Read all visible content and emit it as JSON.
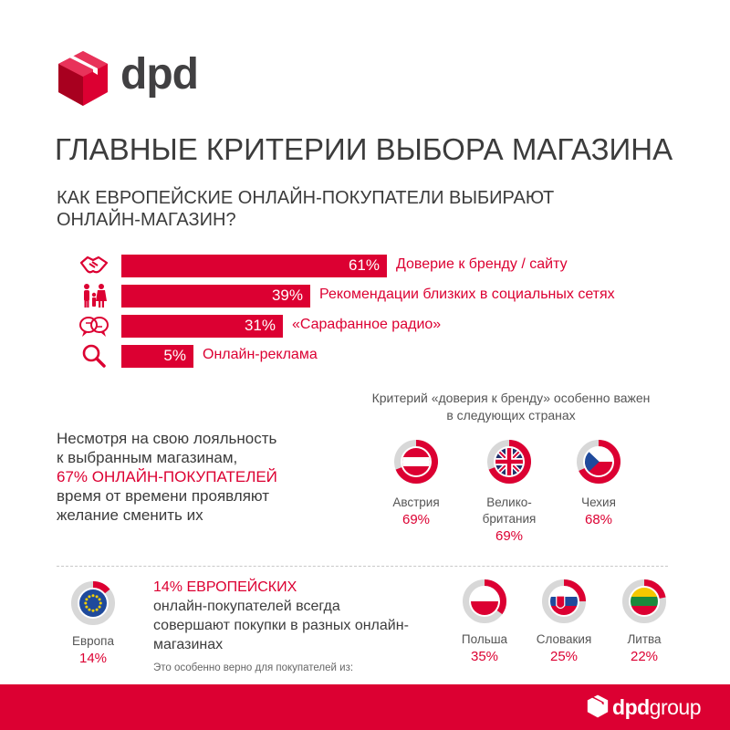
{
  "brand": {
    "logo_text": "dpd",
    "accent": "#dc0032",
    "footer_logo_main": "dpd",
    "footer_logo_suffix": "group"
  },
  "title": "ГЛАВНЫЕ КРИТЕРИИ ВЫБОРА МАГАЗИНА",
  "subtitle": "КАК ЕВРОПЕЙСКИЕ ОНЛАЙН-ПОКУПАТЕЛИ ВЫБИРАЮТ ОНЛАЙН-МАГАЗИН?",
  "chart_data": [
    {
      "type": "bar",
      "categories": [
        "Доверие к бренду / сайту",
        "Рекомендации близких в социальных сетях",
        "«Сарафанное радио»",
        "Онлайн-реклама"
      ],
      "values": [
        61,
        39,
        31,
        5
      ],
      "value_labels": [
        "61%",
        "39%",
        "31%",
        "5%"
      ],
      "icons": [
        "handshake-icon",
        "family-icon",
        "speech-bubbles-icon",
        "magnifier-icon"
      ],
      "xlim": [
        0,
        100
      ]
    },
    {
      "type": "pie",
      "caption": "Критерий «доверия к бренду» особенно важен в следующих странах",
      "categories": [
        "Австрия",
        "Велико-британия",
        "Чехия"
      ],
      "name_lines": [
        [
          "Австрия"
        ],
        [
          "Велико-",
          "британия"
        ],
        [
          "Чехия"
        ]
      ],
      "values": [
        69,
        69,
        68
      ],
      "value_labels": [
        "69%",
        "69%",
        "68%"
      ]
    },
    {
      "type": "pie",
      "categories": [
        "Европа",
        "Польша",
        "Словакия",
        "Литва"
      ],
      "values": [
        14,
        35,
        25,
        22
      ],
      "value_labels": [
        "14%",
        "35%",
        "25%",
        "22%"
      ]
    }
  ],
  "loyalty": {
    "line1": "Несмотря на свою лояльность",
    "line2": "к выбранным магазинам,",
    "highlight": "67% ОНЛАЙН-ПОКУПАТЕЛЕЙ",
    "line3": "время от времени проявляют",
    "line4": "желание сменить их"
  },
  "shoppers": {
    "highlight": "14% ЕВРОПЕЙСКИХ",
    "rest": "онлайн-покупателей всегда совершают покупки в разных онлайн-магазинах",
    "note": "Это особенно верно для покупателей из:"
  },
  "colors": {
    "donut_track": "#d8d8d8",
    "text": "#3c3c3c"
  }
}
